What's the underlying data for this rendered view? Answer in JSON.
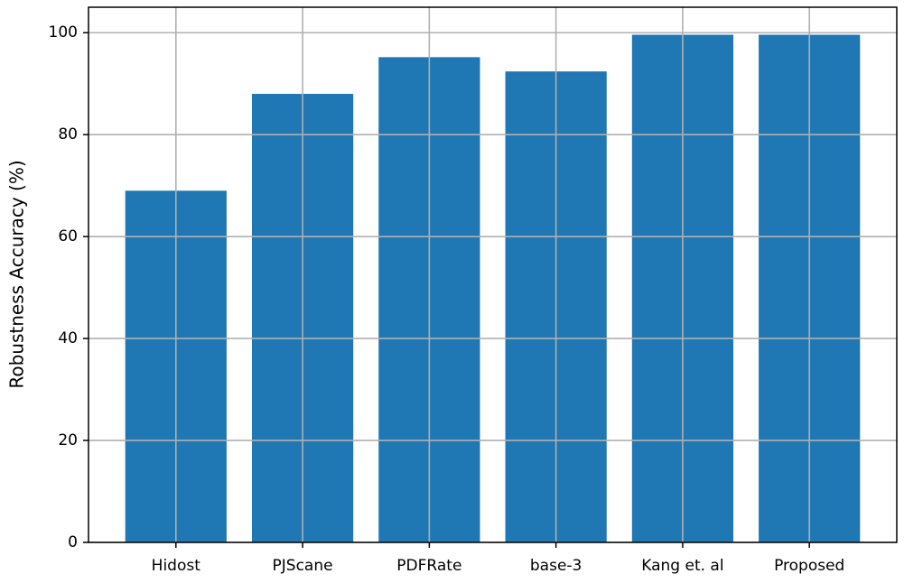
{
  "chart_data": {
    "type": "bar",
    "y_label": "Robustness Accuracy (%)",
    "categories": [
      "Hidost",
      "PJScane",
      "PDFRate",
      "base-3",
      "Kang et. al",
      "Proposed"
    ],
    "values": [
      69,
      88,
      95.2,
      92.4,
      99.6,
      99.6
    ],
    "color": "#1f77b4",
    "ylim": [
      0,
      105
    ],
    "yticks": [
      0,
      20,
      40,
      60,
      80,
      100
    ],
    "grid": true
  }
}
